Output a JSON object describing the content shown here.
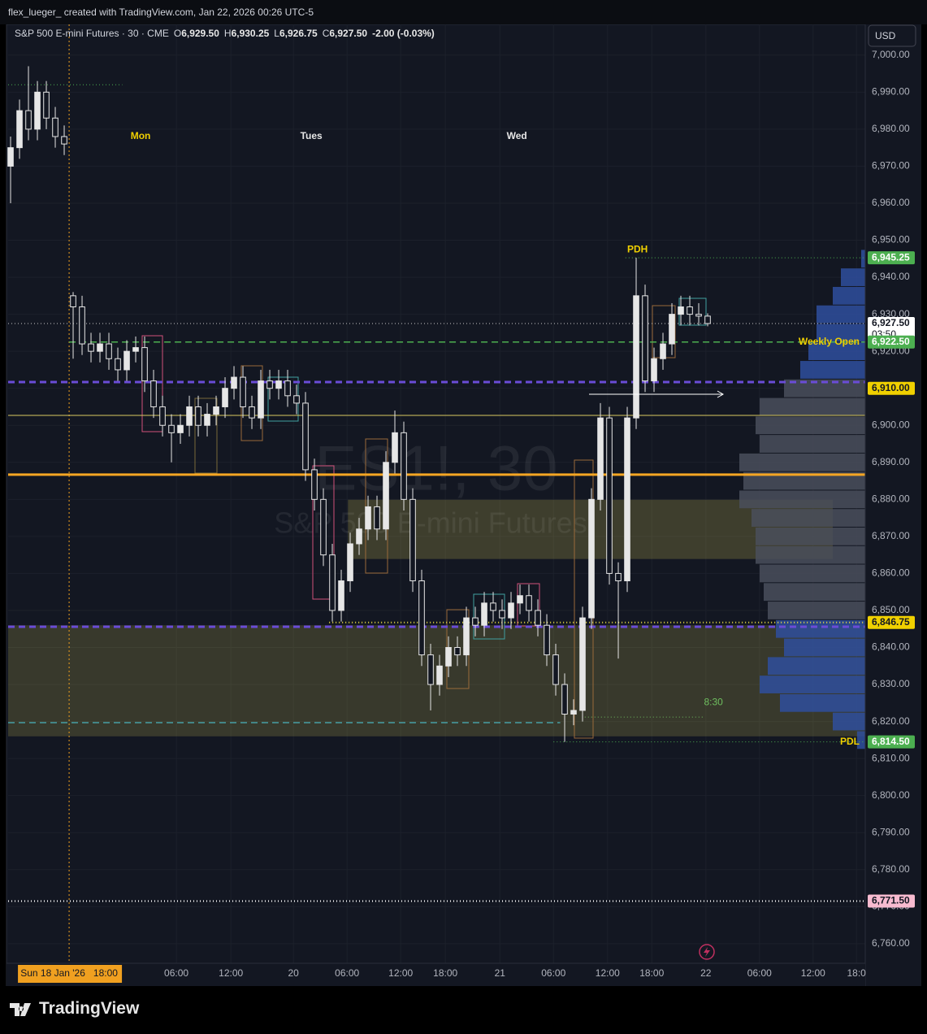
{
  "header": {
    "text": "flex_lueger_ created with TradingView.com, Jan 22, 2026 00:26 UTC-5"
  },
  "chart_data": {
    "type": "candlestick",
    "legend_header": {
      "symbol": "S&P 500 E-mini Futures · 30 · CME",
      "fields": [
        {
          "key": "O",
          "value": "6,929.50"
        },
        {
          "key": "H",
          "value": "6,930.25"
        },
        {
          "key": "L",
          "value": "6,926.75"
        },
        {
          "key": "C",
          "value": "6,927.50"
        }
      ],
      "change": "-2.00 (-0.03%)"
    },
    "currency": "USD",
    "watermark": [
      "ES1!, 30",
      "S&P 500 E-mini Futures"
    ],
    "x": [
      0,
      2,
      4,
      6,
      8,
      10,
      12,
      14,
      16,
      18,
      20,
      22,
      24,
      26,
      28,
      30,
      32,
      34,
      36,
      38,
      40,
      42,
      44,
      46,
      48,
      50,
      52,
      54,
      56,
      58,
      60,
      62,
      64,
      66,
      68,
      70,
      72,
      74,
      76,
      78,
      80,
      82,
      84,
      86,
      88,
      90,
      92,
      94,
      96,
      98,
      100,
      102,
      104,
      106,
      108,
      110,
      112,
      114,
      116,
      118,
      120,
      122,
      124,
      126,
      128,
      130,
      132,
      134,
      136,
      138,
      140,
      142,
      144,
      146,
      148,
      150,
      152,
      154,
      156
    ],
    "open": [
      6970,
      6975,
      6985,
      6980,
      6990,
      6983,
      6978,
      6935,
      6932,
      6922,
      6920,
      6922,
      6918,
      6915,
      6920,
      6921,
      6912,
      6905,
      6900,
      6898,
      6900,
      6905,
      6900,
      6903,
      6905,
      6910,
      6913,
      6905,
      6902,
      6912,
      6910,
      6912,
      6908,
      6906,
      6888,
      6880,
      6865,
      6850,
      6858,
      6868,
      6872,
      6878,
      6872,
      6890,
      6898,
      6880,
      6858,
      6838,
      6830,
      6835,
      6840,
      6838,
      6848,
      6846,
      6852,
      6850,
      6848,
      6852,
      6854,
      6850,
      6846,
      6838,
      6830,
      6822,
      6823,
      6848,
      6880,
      6902,
      6860,
      6858,
      6902,
      6935,
      6912,
      6918,
      6922,
      6930,
      6932,
      6930,
      6929.5
    ],
    "high": [
      6978,
      6988,
      6997,
      6993,
      6993,
      6986,
      6981,
      6936,
      6935,
      6925,
      6925,
      6925,
      6921,
      6923,
      6924,
      6924,
      6915,
      6908,
      6903,
      6903,
      6908,
      6908,
      6906,
      6908,
      6913,
      6916,
      6916,
      6908,
      6915,
      6915,
      6915,
      6915,
      6911,
      6909,
      6891,
      6883,
      6868,
      6861,
      6871,
      6875,
      6881,
      6881,
      6893,
      6904,
      6901,
      6883,
      6861,
      6841,
      6838,
      6843,
      6843,
      6851,
      6851,
      6855,
      6855,
      6853,
      6855,
      6857,
      6857,
      6853,
      6849,
      6841,
      6833,
      6826,
      6851,
      6883,
      6906,
      6905,
      6863,
      6905,
      6945.25,
      6938,
      6921,
      6925,
      6933,
      6935,
      6935,
      6933,
      6930.25
    ],
    "low": [
      6960,
      6972,
      6977,
      6977,
      6980,
      6975,
      6973,
      6918,
      6919,
      6917,
      6917,
      6915,
      6912,
      6912,
      6917,
      6909,
      6902,
      6897,
      6890,
      6895,
      6897,
      6897,
      6897,
      6900,
      6902,
      6907,
      6902,
      6899,
      6899,
      6907,
      6907,
      6905,
      6903,
      6885,
      6877,
      6862,
      6847,
      6847,
      6855,
      6865,
      6869,
      6869,
      6869,
      6887,
      6877,
      6855,
      6835,
      6823,
      6827,
      6832,
      6835,
      6835,
      6843,
      6843,
      6847,
      6845,
      6845,
      6849,
      6847,
      6843,
      6835,
      6827,
      6814.5,
      6819,
      6820,
      6845,
      6877,
      6857,
      6837,
      6855,
      6899,
      6909,
      6909,
      6915,
      6919,
      6927,
      6927,
      6927,
      6926.75
    ],
    "close": [
      6975,
      6985,
      6980,
      6990,
      6983,
      6978,
      6976,
      6932,
      6922,
      6920,
      6922,
      6918,
      6915,
      6920,
      6921,
      6912,
      6905,
      6900,
      6898,
      6900,
      6905,
      6900,
      6903,
      6905,
      6910,
      6913,
      6905,
      6902,
      6912,
      6910,
      6912,
      6908,
      6906,
      6888,
      6880,
      6865,
      6850,
      6858,
      6868,
      6872,
      6878,
      6872,
      6890,
      6898,
      6880,
      6858,
      6838,
      6830,
      6835,
      6840,
      6838,
      6848,
      6846,
      6852,
      6850,
      6848,
      6852,
      6854,
      6850,
      6846,
      6838,
      6830,
      6822,
      6823,
      6848,
      6880,
      6902,
      6860,
      6858,
      6902,
      6935,
      6912,
      6918,
      6922,
      6930,
      6932,
      6930,
      6929.5,
      6927.5
    ],
    "up_color": "#e6e6e6",
    "down_color": "#131722",
    "xlim": [
      -0.55,
      191.27
    ],
    "ylim": [
      6754.7,
      7008.3
    ],
    "yticks": [
      {
        "value": 6760,
        "label": "6,760.00"
      },
      {
        "value": 6770,
        "label": "6,770.00"
      },
      {
        "value": 6780,
        "label": "6,780.00"
      },
      {
        "value": 6790,
        "label": "6,790.00"
      },
      {
        "value": 6800,
        "label": "6,800.00"
      },
      {
        "value": 6810,
        "label": "6,810.00"
      },
      {
        "value": 6820,
        "label": "6,820.00"
      },
      {
        "value": 6830,
        "label": "6,830.00"
      },
      {
        "value": 6840,
        "label": "6,840.00"
      },
      {
        "value": 6850,
        "label": "6,850.00"
      },
      {
        "value": 6860,
        "label": "6,860.00"
      },
      {
        "value": 6870,
        "label": "6,870.00"
      },
      {
        "value": 6880,
        "label": "6,880.00"
      },
      {
        "value": 6890,
        "label": "6,890.00"
      },
      {
        "value": 6900,
        "label": "6,900.00"
      },
      {
        "value": 6910,
        "label": "6,910.00"
      },
      {
        "value": 6920,
        "label": "6,920.00"
      },
      {
        "value": 6930,
        "label": "6,930.00"
      },
      {
        "value": 6940,
        "label": "6,940.00"
      },
      {
        "value": 6950,
        "label": "6,950.00"
      },
      {
        "value": 6960,
        "label": "6,960.00"
      },
      {
        "value": 6970,
        "label": "6,970.00"
      },
      {
        "value": 6980,
        "label": "6,980.00"
      },
      {
        "value": 6990,
        "label": "6,990.00"
      },
      {
        "value": 7000,
        "label": "7,000.00"
      }
    ],
    "xticks": [
      {
        "value": 37.1,
        "label": "06:00"
      },
      {
        "value": 49.3,
        "label": "12:00"
      },
      {
        "value": 63.3,
        "label": "20"
      },
      {
        "value": 75.3,
        "label": "06:00"
      },
      {
        "value": 87.3,
        "label": "12:00"
      },
      {
        "value": 97.3,
        "label": "18:00"
      },
      {
        "value": 109.5,
        "label": "21"
      },
      {
        "value": 121.5,
        "label": "06:00"
      },
      {
        "value": 133.6,
        "label": "12:00"
      },
      {
        "value": 143.5,
        "label": "18:00"
      },
      {
        "value": 155.6,
        "label": "22"
      },
      {
        "value": 167.6,
        "label": "06:00"
      },
      {
        "value": 179.6,
        "label": "12:00"
      },
      {
        "value": 189.3,
        "label": "18:0"
      }
    ],
    "grid": true,
    "crosshair_x": {
      "value": 13.1,
      "label": "Sun 18 Jan '26   18:00",
      "color": "#f0a020"
    },
    "session_labels": [
      {
        "x": 29.1,
        "label": "Mon",
        "color": "#f0d000"
      },
      {
        "x": 67.3,
        "label": "Tues",
        "color": "#e6e6e6"
      },
      {
        "x": 113.3,
        "label": "Wed",
        "color": "#e6e6e6"
      }
    ],
    "zones": [
      {
        "from": 6846,
        "to": 6816,
        "x_from": -0.55,
        "x_to": 191.27,
        "color": "rgba(190,180,80,0.22)"
      },
      {
        "from": 6879.9,
        "to": 6863.9,
        "x_from": 75.5,
        "x_to": 184,
        "color": "rgba(190,180,80,0.25)"
      }
    ],
    "volume_profile": {
      "prices": [
        6945,
        6940,
        6935,
        6930,
        6925,
        6920,
        6915,
        6910,
        6905,
        6900,
        6895,
        6890,
        6885,
        6880,
        6875,
        6870,
        6865,
        6860,
        6855,
        6850,
        6845,
        6840,
        6835,
        6830,
        6825,
        6820,
        6815
      ],
      "volumes": [
        5,
        30,
        40,
        60,
        60,
        70,
        80,
        100,
        130,
        135,
        130,
        155,
        150,
        155,
        140,
        135,
        135,
        130,
        125,
        120,
        110,
        100,
        120,
        130,
        105,
        40,
        10
      ],
      "colors": [
        "#2f4f9e",
        "#2f4f9e",
        "#2f4f9e",
        "#2f4f9e",
        "#2f4f9e",
        "#2f4f9e",
        "#2f4f9e",
        "#4a4f5c",
        "#4a4f5c",
        "#4a4f5c",
        "#4a4f5c",
        "#4a4f5c",
        "#4a4f5c",
        "#4a4f5c",
        "#4a4f5c",
        "#4a4f5c",
        "#4a4f5c",
        "#4a4f5c",
        "#4a4f5c",
        "#4a4f5c",
        "#2f4f9e",
        "#2f4f9e",
        "#2f4f9e",
        "#2f4f9e",
        "#2f4f9e",
        "#2f4f9e",
        "#2f4f9e"
      ]
    },
    "levels": [
      {
        "price": 6992,
        "color": "#4caf50",
        "style": "dotted",
        "width": 1,
        "x_from": -0.55,
        "x_to": 25
      },
      {
        "price": 6945.25,
        "color": "#4caf50",
        "style": "dotted",
        "width": 1,
        "x_from": 137.6,
        "x_to": 191.27,
        "tag": "6,945.25",
        "tag_color": "#4caf50",
        "tag_text_color": "#ffffff",
        "text": "PDH",
        "text_color": "#f0d000",
        "text_at": 140.3
      },
      {
        "price": 6927.5,
        "color": "#c8c8c8",
        "style": "dotted",
        "width": 1,
        "x_from": -0.55,
        "x_to": 191.27,
        "tag": "6,927.50",
        "tag_extra": "03:50",
        "tag_color": "#ffffff",
        "tag_text_color": "#131722"
      },
      {
        "price": 6922.5,
        "color": "#4caf50",
        "style": "dashed",
        "width": 1.5,
        "x_from": 13.1,
        "x_to": 191.27,
        "tag": "6,922.50",
        "tag_color": "#4caf50",
        "tag_text_color": "#ffffff",
        "text": "Weekly Open",
        "text_color": "#f0d000",
        "text_at": 190
      },
      {
        "price": 6911.7,
        "color": "#6a4cd6",
        "style": "dashed",
        "width": 3,
        "x_from": -0.55,
        "x_to": 191.27
      },
      {
        "price": 6910,
        "tag": "6,910.00",
        "tag_color": "#f0d000",
        "tag_text_color": "#131722"
      },
      {
        "price": 6902.7,
        "color": "#d8c860",
        "style": "solid",
        "width": 1,
        "x_from": -0.55,
        "x_to": 191.27
      },
      {
        "price": 6886.7,
        "color": "#f5a623",
        "style": "solid",
        "width": 3,
        "x_from": -0.55,
        "x_to": 191.27
      },
      {
        "price": 6846.75,
        "color": "#f0e040",
        "style": "dotted",
        "width": 2,
        "x_from": 71.3,
        "x_to": 191.27,
        "tag": "6,846.75",
        "tag_color": "#f0d000",
        "tag_text_color": "#131722"
      },
      {
        "price": 6845.6,
        "color": "#6a4cd6",
        "style": "dashed",
        "width": 3,
        "x_from": -0.55,
        "x_to": 191.27
      },
      {
        "price": 6819.7,
        "color": "#4dd0e1",
        "style": "dashed",
        "width": 1,
        "x_from": -0.55,
        "x_to": 123
      },
      {
        "price": 6814.5,
        "color": "#4caf50",
        "style": "dotted",
        "width": 1,
        "x_from": 121.5,
        "x_to": 191.27,
        "tag": "6,814.50",
        "tag_color": "#4caf50",
        "tag_text_color": "#ffffff",
        "text": "PDL",
        "text_color": "#f0d000",
        "text_at": 190
      },
      {
        "price": 6771.5,
        "color": "#ffffff",
        "style": "dotted",
        "width": 2,
        "x_from": -0.55,
        "x_to": 191.27,
        "tag": "6,771.50",
        "tag_color": "#f8bbd0",
        "tag_text_color": "#131722"
      }
    ],
    "annotations": [
      {
        "text": "8:30",
        "x": 157.3,
        "price": 6822.5,
        "color": "#6fbf5f",
        "line_from": 128.5,
        "line_price": 6821.2
      }
    ]
  },
  "footer": {
    "brand": "TradingView"
  }
}
